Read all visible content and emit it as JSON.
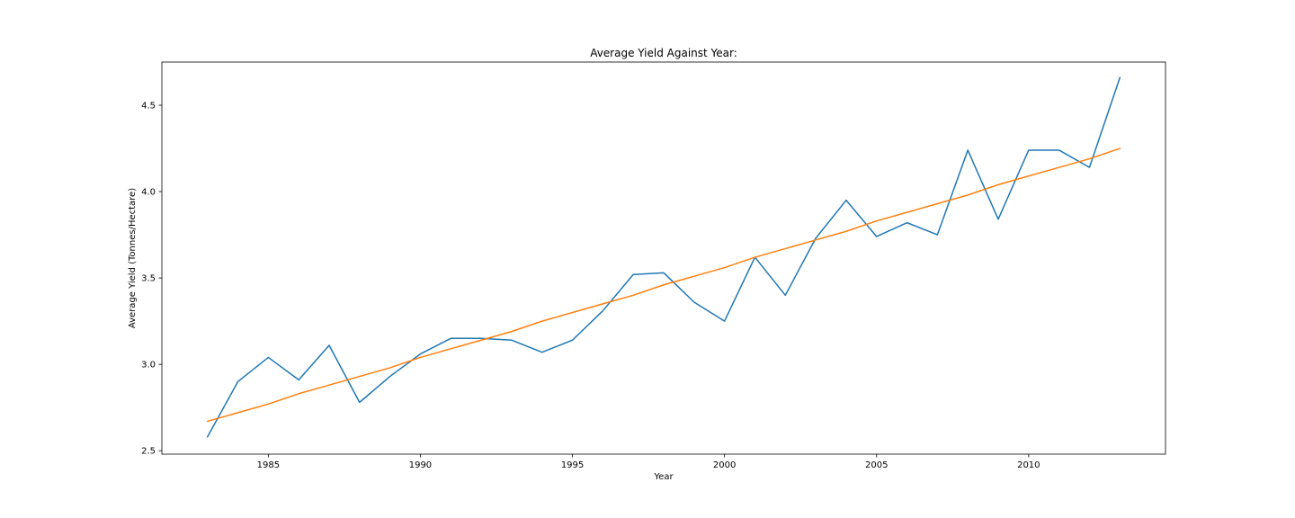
{
  "chart_data": {
    "type": "line",
    "title": "Average Yield Against Year:",
    "xlabel": "Year",
    "ylabel": "Average Yield (Tonnes/Hectare)",
    "xlim": [
      1981.5,
      2014.5
    ],
    "ylim": [
      2.48,
      4.75
    ],
    "xticks": [
      1985,
      1990,
      1995,
      2000,
      2005,
      2010
    ],
    "yticks": [
      2.5,
      3.0,
      3.5,
      4.0,
      4.5
    ],
    "ytick_labels": [
      "2.5",
      "3.0",
      "3.5",
      "4.0",
      "4.5"
    ],
    "grid": false,
    "legend": false,
    "x": [
      1983,
      1984,
      1985,
      1986,
      1987,
      1988,
      1989,
      1990,
      1991,
      1992,
      1993,
      1994,
      1995,
      1996,
      1997,
      1998,
      1999,
      2000,
      2001,
      2002,
      2003,
      2004,
      2005,
      2006,
      2007,
      2008,
      2009,
      2010,
      2011,
      2012,
      2013
    ],
    "series": [
      {
        "color": "#1f77b4",
        "values": [
          2.58,
          2.9,
          3.04,
          2.91,
          3.11,
          2.78,
          2.93,
          3.06,
          3.15,
          3.15,
          3.14,
          3.07,
          3.14,
          3.31,
          3.52,
          3.53,
          3.36,
          3.25,
          3.62,
          3.4,
          3.73,
          3.95,
          3.74,
          3.82,
          3.75,
          4.24,
          3.84,
          4.24,
          4.24,
          4.14,
          4.66
        ]
      },
      {
        "color": "#ff7f0e",
        "values": [
          2.67,
          2.72,
          2.77,
          2.83,
          2.88,
          2.93,
          2.98,
          3.04,
          3.09,
          3.14,
          3.19,
          3.25,
          3.3,
          3.35,
          3.4,
          3.46,
          3.51,
          3.56,
          3.62,
          3.67,
          3.72,
          3.77,
          3.83,
          3.88,
          3.93,
          3.98,
          4.04,
          4.09,
          4.14,
          4.19,
          4.25
        ]
      }
    ]
  }
}
